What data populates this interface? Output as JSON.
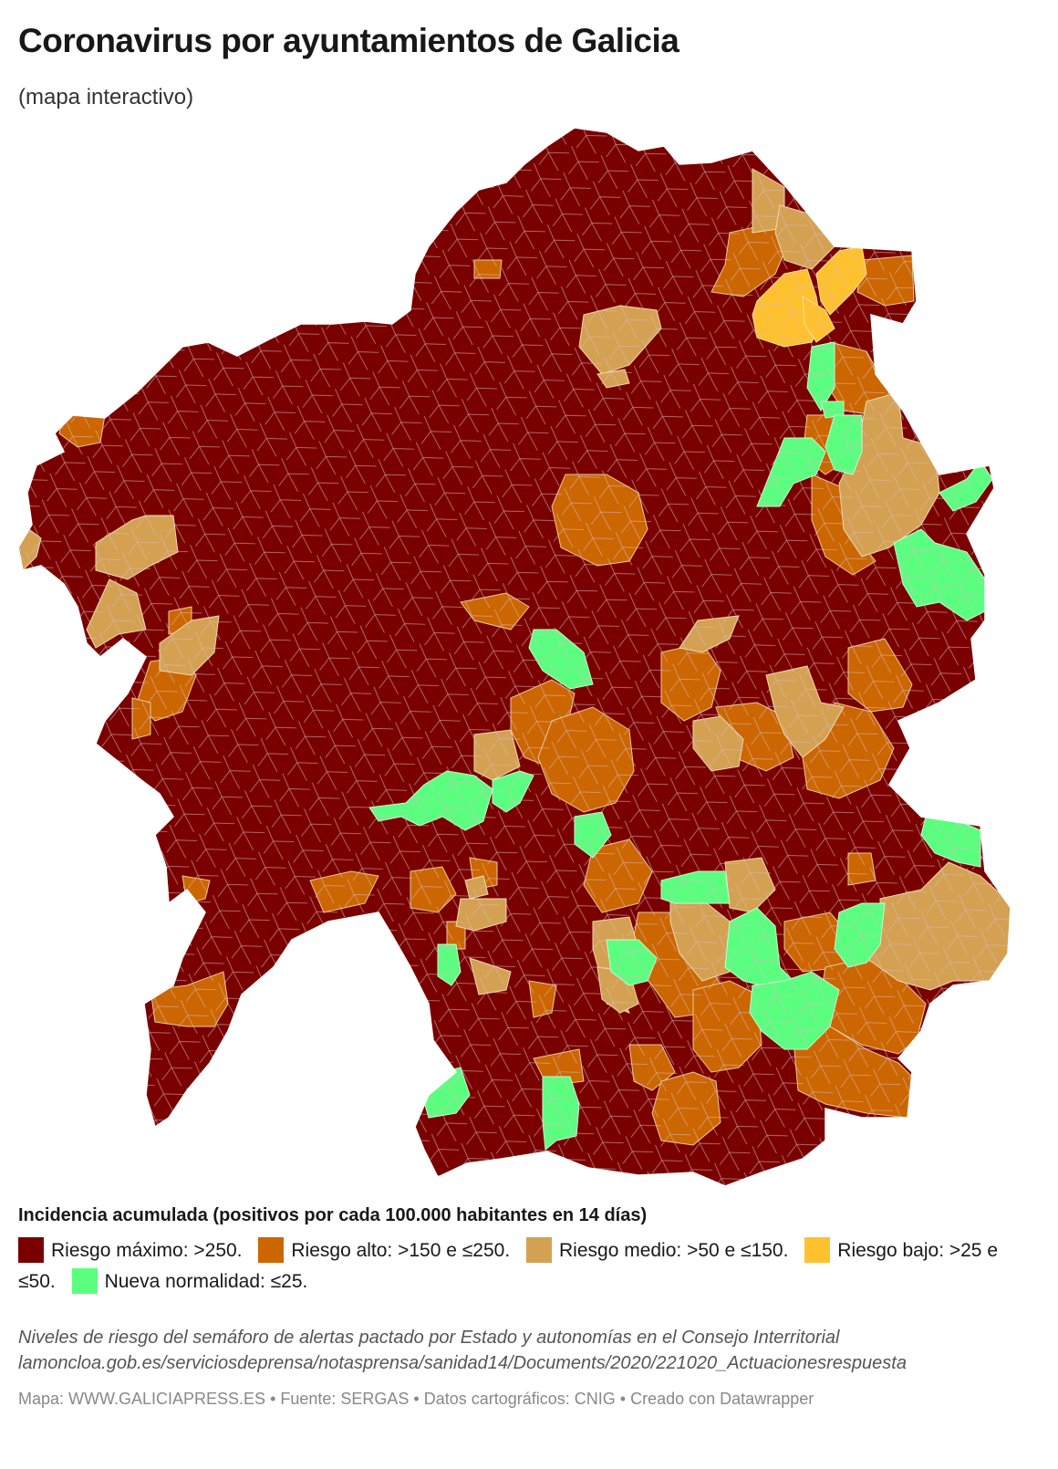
{
  "header": {
    "title": "Coronavirus por ayuntamientos de Galicia",
    "subtitle": "(mapa interactivo)"
  },
  "map": {
    "base_color": "#7a0000",
    "border_color": "#d9b8b8",
    "regions": [
      {
        "name": "riesgo-alto",
        "color": "#cc6600"
      },
      {
        "name": "riesgo-medio",
        "color": "#d4a153"
      },
      {
        "name": "riesgo-bajo",
        "color": "#ffc12e"
      },
      {
        "name": "nueva-normalidad",
        "color": "#5bff7f"
      }
    ]
  },
  "legend": {
    "title": "Incidencia acumulada (positivos por cada 100.000 habitantes en 14 días)",
    "items": [
      {
        "label": "Riesgo máximo: >250.",
        "color": "#7a0000"
      },
      {
        "label": "Riesgo alto: >150 e ≤250.",
        "color": "#cc6600"
      },
      {
        "label": "Riesgo medio: >50 e ≤150.",
        "color": "#d4a153"
      },
      {
        "label": "Riesgo bajo: >25 e ≤50.",
        "color": "#ffc12e"
      },
      {
        "label": "Nueva normalidad: ≤25.",
        "color": "#5bff7f"
      }
    ]
  },
  "notes": {
    "line1": "Niveles de riesgo del semáforo de alertas pactado por Estado y autonomías en el Consejo Interritorial",
    "line2": "lamoncloa.gob.es/serviciosdeprensa/notasprensa/sanidad14/Documents/2020/221020_Actuacionesrespuesta"
  },
  "footer": {
    "text": "Mapa: WWW.GALICIAPRESS.ES • Fuente: SERGAS • Datos cartográficos: CNIG • Creado con Datawrapper"
  }
}
